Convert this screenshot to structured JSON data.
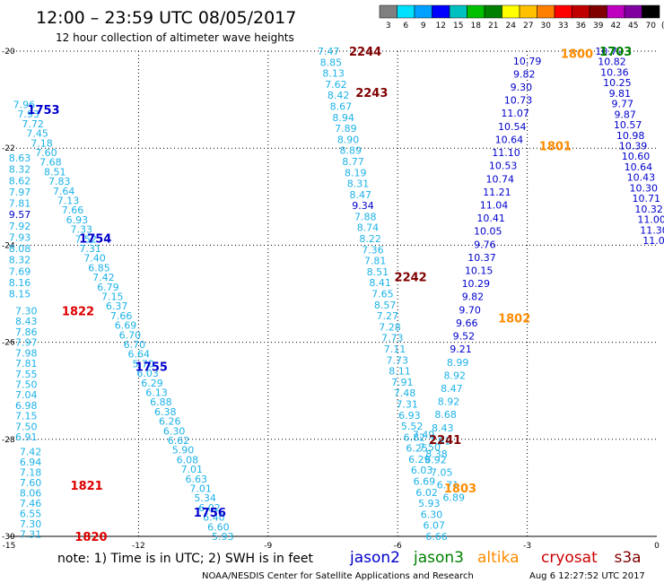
{
  "title": "12:00 – 23:59 UTC 08/05/2017",
  "subtitle": "12 hour collection of altimeter wave heights",
  "note": "note:  1) Time is in UTC; 2) SWH is in feet",
  "credit": "NOAA/NESDIS Center for Satellite Applications and Research",
  "timestamp": "Aug  6 12:27:52 UTC 2017",
  "colorbar": {
    "unit": "(ft)",
    "labels": [
      "3",
      "6",
      "9",
      "12",
      "15",
      "18",
      "21",
      "24",
      "27",
      "30",
      "33",
      "36",
      "39",
      "42",
      "45",
      "70"
    ],
    "colors": [
      "#808080",
      "#00e0ff",
      "#00a0ff",
      "#0000ff",
      "#00c0c0",
      "#00c000",
      "#008000",
      "#ffff00",
      "#ffc000",
      "#ff8000",
      "#ff0000",
      "#c00000",
      "#800000",
      "#c000c0",
      "#8000a0",
      "#000000"
    ]
  },
  "satellites": [
    {
      "name": "jason2",
      "color": "#0000cc"
    },
    {
      "name": "jason3",
      "color": "#008000"
    },
    {
      "name": "altika",
      "color": "#ff8c00"
    },
    {
      "name": "cryosat",
      "color": "#cc0000"
    },
    {
      "name": "s3a",
      "color": "#800000"
    }
  ],
  "chart_data": {
    "type": "scatter",
    "xlim": [
      -15,
      0
    ],
    "ylim": [
      -30,
      -20
    ],
    "x_ticks": [
      -15,
      -12,
      -9,
      -6,
      -3,
      0
    ],
    "y_ticks": [
      -20,
      -22,
      -24,
      -26,
      -28,
      -30
    ],
    "grid": true,
    "value_colors": {
      "low": "#1cb2e8",
      "high": "#0000cc"
    },
    "tracks": [
      {
        "pass": "1753",
        "color": "#0000cc",
        "x0": -14.65,
        "x1": -10.05,
        "y0": -21.1,
        "y1": -30.0,
        "values": [
          7.96,
          7.93,
          7.72,
          7.45,
          7.18,
          7.6,
          7.68,
          8.51,
          7.83,
          7.64,
          7.13,
          7.66,
          6.93,
          7.33,
          7.52,
          7.31,
          7.4,
          6.85,
          7.42,
          6.79,
          7.15,
          6.37,
          7.66,
          6.69,
          6.7,
          6.7,
          6.64,
          5.7,
          6.03,
          6.29,
          6.13,
          6.88,
          6.38,
          6.26,
          6.3,
          6.62,
          5.9,
          6.08,
          7.01,
          6.63,
          7.01,
          5.34,
          6.02,
          6.4,
          6.6,
          5.93
        ]
      },
      {
        "pass": "1754",
        "color": "#0000cc",
        "x0": -14.75,
        "x1": -14.75,
        "y0": -22.2,
        "y1": -25.0,
        "values": [
          8.63,
          8.32,
          8.62,
          7.97,
          7.81,
          9.57,
          7.92,
          7.93,
          8.08,
          8.32,
          7.69,
          8.16,
          8.15
        ]
      },
      {
        "pass": "1755",
        "color": "#0000cc",
        "x0": -14.6,
        "x1": -14.6,
        "y0": -25.35,
        "y1": -27.95,
        "values": [
          7.3,
          8.43,
          7.86,
          7.97,
          7.98,
          7.81,
          7.55,
          7.5,
          7.04,
          6.98,
          7.15,
          7.5,
          6.91
        ]
      },
      {
        "pass": "1756",
        "color": "#0000cc",
        "x0": -14.5,
        "x1": -14.5,
        "y0": -28.25,
        "y1": -29.95,
        "values": [
          7.42,
          6.94,
          7.18,
          7.6,
          8.06,
          7.46,
          6.55,
          7.3,
          7.31
        ]
      },
      {
        "pass": "2244",
        "color": "#800000",
        "x0": -7.6,
        "x1": -5.1,
        "y0": -20.0,
        "y1": -30.0,
        "values": [
          7.47,
          8.85,
          8.13,
          7.62,
          8.42,
          8.67,
          8.94,
          7.89,
          8.9,
          8.89,
          8.77,
          8.19,
          8.31,
          8.47,
          9.34,
          7.88,
          8.74,
          8.22,
          7.36,
          7.81,
          8.51,
          8.41,
          7.65,
          8.57,
          7.27,
          7.28,
          7.73,
          7.11,
          7.73,
          8.11,
          7.91,
          7.48,
          7.31,
          6.93,
          5.52,
          6.82,
          6.25,
          6.29,
          6.03,
          6.69,
          6.02,
          5.93,
          6.3,
          6.07,
          6.66
        ]
      },
      {
        "pass": "2242",
        "color": "#800000",
        "x0": -5.4,
        "x1": -4.7,
        "y0": -27.9,
        "y1": -29.2,
        "values": [
          7.49,
          7.5,
          6.92,
          7.05,
          6.71,
          6.89
        ]
      },
      {
        "pass": "1803",
        "color": "#ff8c00",
        "x0": -3.0,
        "x1": -5.1,
        "y0": -20.2,
        "y1": -28.3,
        "values": [
          10.79,
          9.82,
          9.3,
          10.73,
          11.07,
          10.54,
          10.64,
          11.1,
          10.53,
          10.74,
          11.21,
          11.04,
          10.41,
          10.05,
          9.76,
          10.37,
          10.15,
          10.29,
          9.82,
          9.7,
          9.66,
          9.52,
          9.21,
          8.99,
          8.92,
          8.47,
          8.92,
          8.68,
          8.43,
          7.91,
          8.38
        ]
      },
      {
        "pass": "1703",
        "color": "#008000",
        "x0": -1.1,
        "x1": 0.0,
        "y0": -20.0,
        "y1": -23.9,
        "values": [
          10.72,
          10.82,
          10.36,
          10.25,
          9.81,
          9.77,
          9.87,
          10.57,
          10.98,
          10.39,
          10.6,
          10.64,
          10.43,
          10.3,
          10.71,
          10.32,
          11.0,
          11.3,
          11.0
        ]
      }
    ],
    "labels": [
      {
        "text": "2244",
        "color": "#800000",
        "x": -6.75,
        "y": -20.0
      },
      {
        "text": "2243",
        "color": "#800000",
        "x": -6.6,
        "y": -20.85
      },
      {
        "text": "2242",
        "color": "#800000",
        "x": -5.7,
        "y": -24.65
      },
      {
        "text": "2241",
        "color": "#800000",
        "x": -4.9,
        "y": -28.0
      },
      {
        "text": "1800",
        "color": "#ff8c00",
        "x": -1.85,
        "y": -20.05
      },
      {
        "text": "1801",
        "color": "#ff8c00",
        "x": -2.35,
        "y": -21.95
      },
      {
        "text": "1802",
        "color": "#ff8c00",
        "x": -3.3,
        "y": -25.5
      },
      {
        "text": "1803",
        "color": "#ff8c00",
        "x": -4.55,
        "y": -29.0
      },
      {
        "text": "1703",
        "color": "#008000",
        "x": -0.95,
        "y": -20.0
      },
      {
        "text": "1753",
        "color": "#0000cc",
        "x": -14.2,
        "y": -21.2
      },
      {
        "text": "1754",
        "color": "#0000cc",
        "x": -13.0,
        "y": -23.85
      },
      {
        "text": "1755",
        "color": "#0000cc",
        "x": -11.7,
        "y": -26.5
      },
      {
        "text": "1756",
        "color": "#0000cc",
        "x": -10.35,
        "y": -29.5
      },
      {
        "text": "1822",
        "color": "#dd0000",
        "x": -13.4,
        "y": -25.35
      },
      {
        "text": "1821",
        "color": "#dd0000",
        "x": -13.2,
        "y": -28.95
      },
      {
        "text": "1820",
        "color": "#dd0000",
        "x": -13.1,
        "y": -30.0
      }
    ]
  }
}
